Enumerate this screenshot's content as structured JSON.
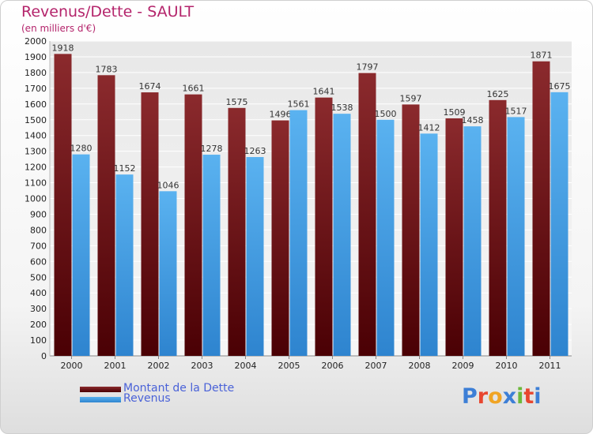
{
  "chart_data": {
    "type": "bar",
    "title": "Revenus/Dette - SAULT",
    "subtitle": "(en milliers d'€)",
    "categories": [
      "2000",
      "2001",
      "2002",
      "2003",
      "2004",
      "2005",
      "2006",
      "2007",
      "2008",
      "2009",
      "2010",
      "2011"
    ],
    "series": [
      {
        "name": "Montant de la Dette",
        "color": "#7a1e22",
        "values": [
          1918,
          1783,
          1674,
          1661,
          1575,
          1496,
          1641,
          1797,
          1597,
          1509,
          1625,
          1871
        ]
      },
      {
        "name": "Revenus",
        "color": "#4aa6ea",
        "values": [
          1280,
          1152,
          1046,
          1278,
          1263,
          1561,
          1538,
          1500,
          1412,
          1458,
          1517,
          1675
        ]
      }
    ],
    "ylim": [
      0,
      2000
    ],
    "ytick_step": 100,
    "grid": true,
    "legend_position": "bottom-left"
  },
  "logo": {
    "letters": [
      {
        "ch": "P",
        "color": "#3d7fd6"
      },
      {
        "ch": "r",
        "color": "#e8462f"
      },
      {
        "ch": "o",
        "color": "#f0a424"
      },
      {
        "ch": "x",
        "color": "#3d7fd6"
      },
      {
        "ch": "i",
        "color": "#6cb83a"
      },
      {
        "ch": "t",
        "color": "#e8462f"
      },
      {
        "ch": "i",
        "color": "#3d7fd6"
      }
    ]
  }
}
